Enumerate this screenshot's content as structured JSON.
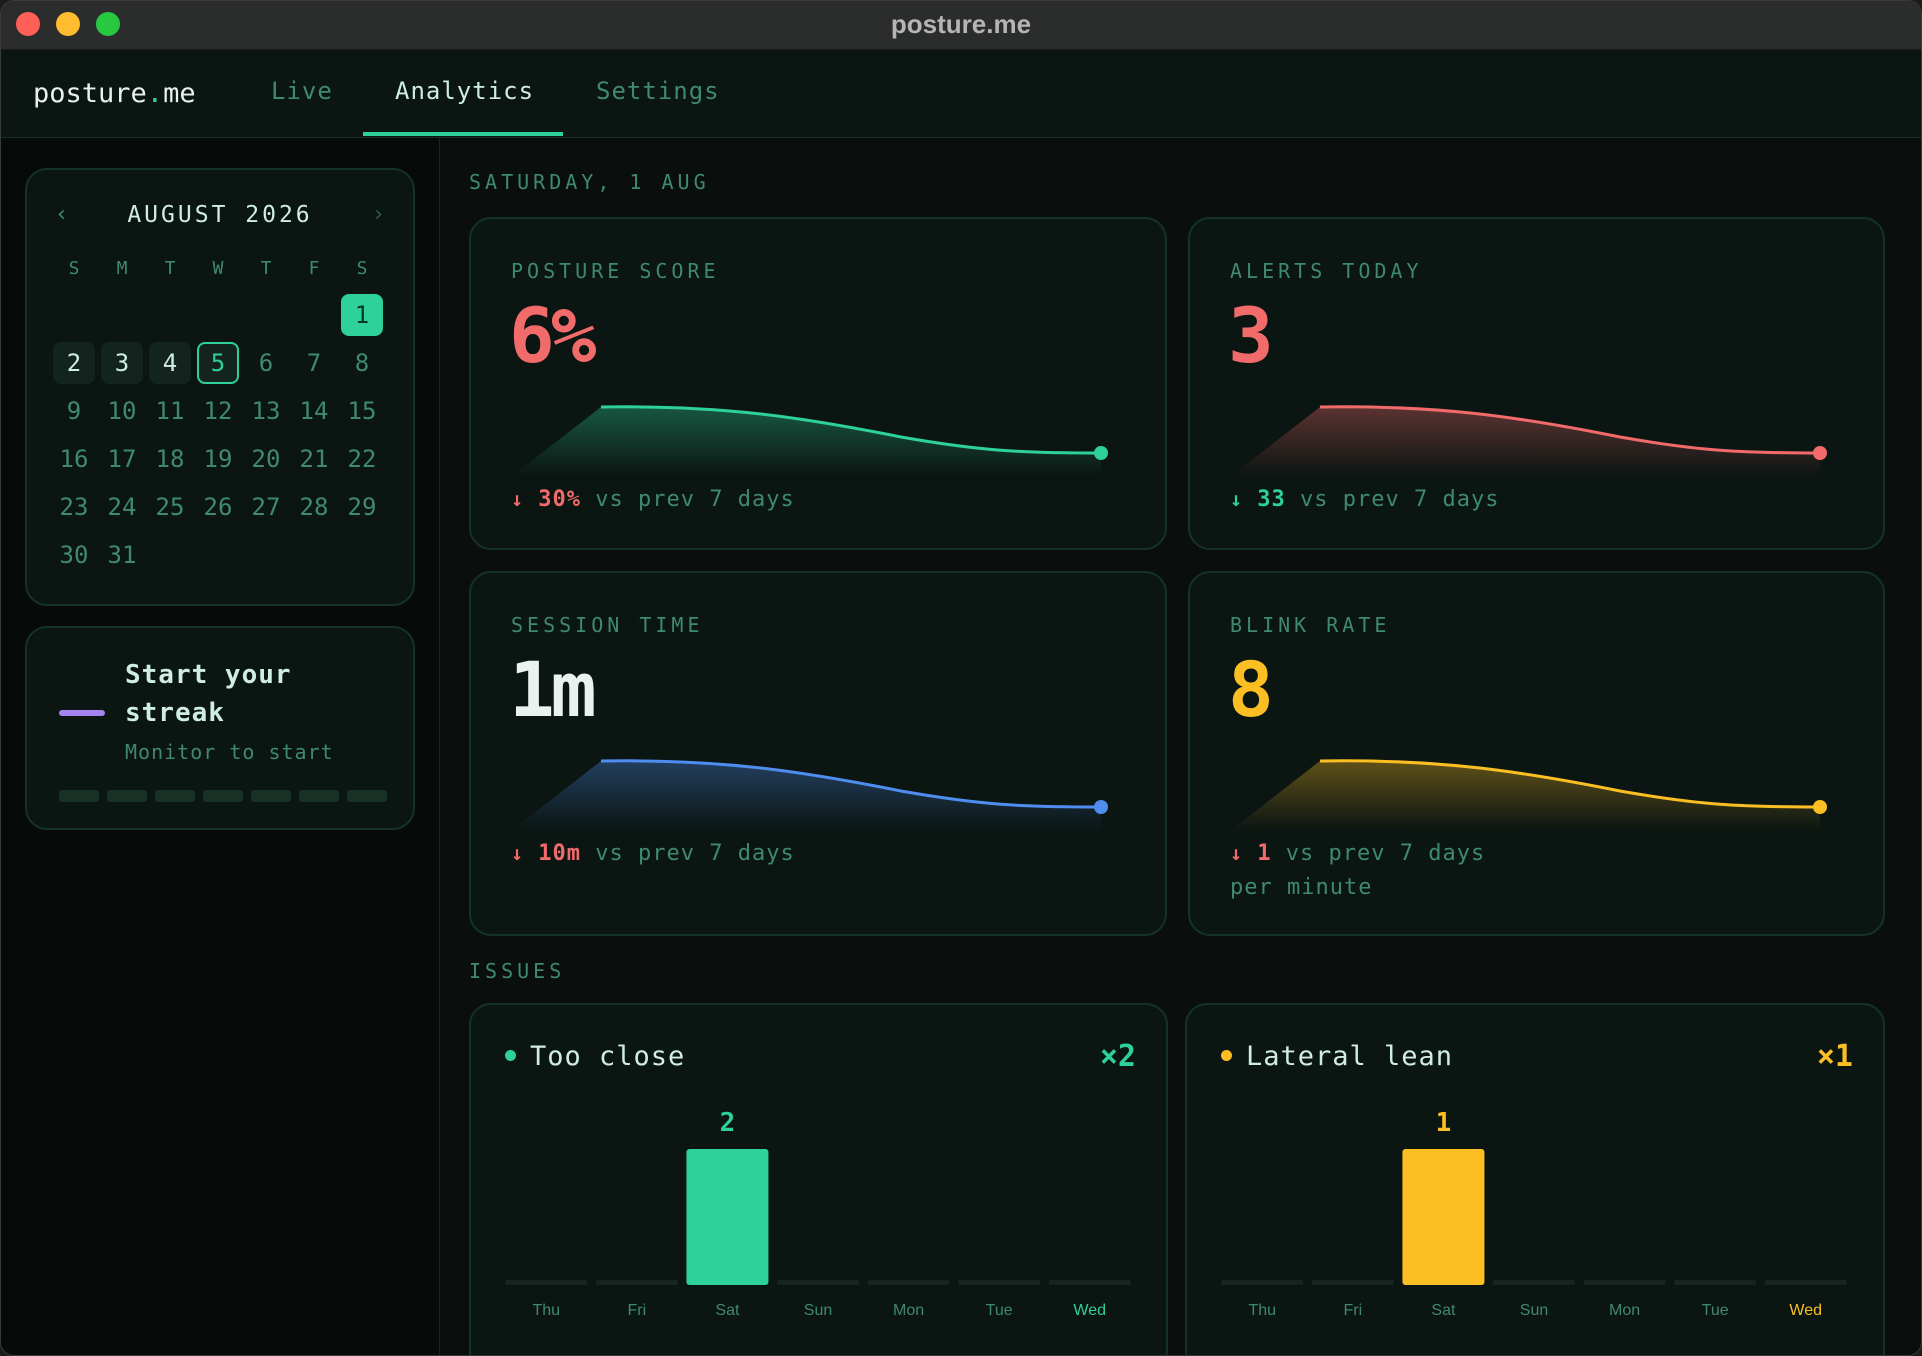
{
  "window": {
    "title": "posture.me"
  },
  "nav": {
    "brand_main": "posture",
    "brand_dot": ".",
    "brand_tld": "me",
    "tabs": [
      {
        "label": "Live",
        "active": false
      },
      {
        "label": "Analytics",
        "active": true
      },
      {
        "label": "Settings",
        "active": false
      }
    ]
  },
  "calendar": {
    "title": "AUGUST 2026",
    "prev": "‹",
    "next": "›",
    "weekdays": [
      "S",
      "M",
      "T",
      "W",
      "T",
      "F",
      "S"
    ],
    "days": [
      "1",
      "2",
      "3",
      "4",
      "5",
      "6",
      "7",
      "8",
      "9",
      "10",
      "11",
      "12",
      "13",
      "14",
      "15",
      "16",
      "17",
      "18",
      "19",
      "20",
      "21",
      "22",
      "23",
      "24",
      "25",
      "26",
      "27",
      "28",
      "29",
      "30",
      "31"
    ]
  },
  "streak": {
    "title": "Start your streak",
    "subtitle": "Monitor to start",
    "segments": 7
  },
  "main": {
    "date_label": "SATURDAY, 1 AUG",
    "issues_label": "ISSUES"
  },
  "stats": [
    {
      "title": "POSTURE SCORE",
      "value": "6%",
      "color": "#f26b6b",
      "trend_color": "#2ed19a",
      "arrow": "↓",
      "change": "30%",
      "change_color": "#f26b6b",
      "suffix": "vs prev 7 days",
      "unit": ""
    },
    {
      "title": "ALERTS TODAY",
      "value": "3",
      "color": "#f26b6b",
      "trend_color": "#f26b6b",
      "arrow": "↓",
      "change": "33",
      "change_color": "#2ed19a",
      "suffix": "vs prev 7 days",
      "unit": ""
    },
    {
      "title": "SESSION TIME",
      "value": "1m",
      "color": "#e9f2ee",
      "trend_color": "#4f8ef0",
      "arrow": "↓",
      "change": "10m",
      "change_color": "#f26b6b",
      "suffix": "vs prev 7 days",
      "unit": ""
    },
    {
      "title": "BLINK RATE",
      "value": "8",
      "color": "#fbbf24",
      "trend_color": "#fbbf24",
      "arrow": "↓",
      "change": "1",
      "change_color": "#f26b6b",
      "suffix": "vs prev 7 days",
      "unit": "per minute"
    }
  ],
  "issues": [
    {
      "name": "Too close",
      "count": "×2",
      "color": "#2ed19a",
      "chart_data": {
        "type": "bar",
        "categories": [
          "Thu",
          "Fri",
          "Sat",
          "Sun",
          "Mon",
          "Tue",
          "Wed"
        ],
        "values": [
          0,
          0,
          2,
          0,
          0,
          0,
          0
        ],
        "data_labels": [
          "",
          "",
          "2",
          "",
          "",
          "",
          ""
        ],
        "highlight_category": "Wed"
      }
    },
    {
      "name": "Lateral lean",
      "count": "×1",
      "color": "#fbbf24",
      "chart_data": {
        "type": "bar",
        "categories": [
          "Thu",
          "Fri",
          "Sat",
          "Sun",
          "Mon",
          "Tue",
          "Wed"
        ],
        "values": [
          0,
          0,
          1,
          0,
          0,
          0,
          0
        ],
        "data_labels": [
          "",
          "",
          "1",
          "",
          "",
          "",
          ""
        ],
        "highlight_category": "Wed"
      }
    }
  ]
}
